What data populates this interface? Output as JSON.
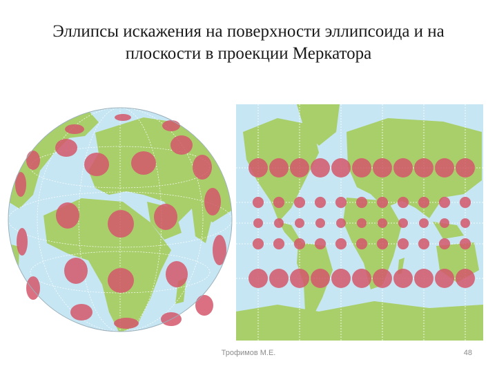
{
  "slide": {
    "title_line1": "Эллипсы искажения на поверхности эллипсоида и на",
    "title_line2": "плоскости в проекции Меркатора",
    "author": "Трофимов М.Е.",
    "page_number": "48"
  },
  "colors": {
    "ocean": "#c7e6f4",
    "land": "#a9cf6b",
    "border": "#7f8c8d",
    "ellipse": "#d4576b",
    "ellipse_on_land": "#d2604d",
    "grid": "#ffffff",
    "background": "#ffffff"
  },
  "globe": {
    "projection": "orthographic",
    "ellipse_rows": [
      {
        "lat_deg": 60,
        "count": 6
      },
      {
        "lat_deg": 30,
        "count": 6
      },
      {
        "lat_deg": 0,
        "count": 6
      },
      {
        "lat_deg": -30,
        "count": 6
      }
    ]
  },
  "mercator": {
    "projection": "Mercator",
    "ellipse_rows": [
      {
        "lat_deg": 60,
        "count": 11
      },
      {
        "lat_deg": 30,
        "count": 11
      },
      {
        "lat_deg": 0,
        "count": 11
      },
      {
        "lat_deg": -30,
        "count": 11
      },
      {
        "lat_deg": -60,
        "count": 11
      }
    ]
  }
}
